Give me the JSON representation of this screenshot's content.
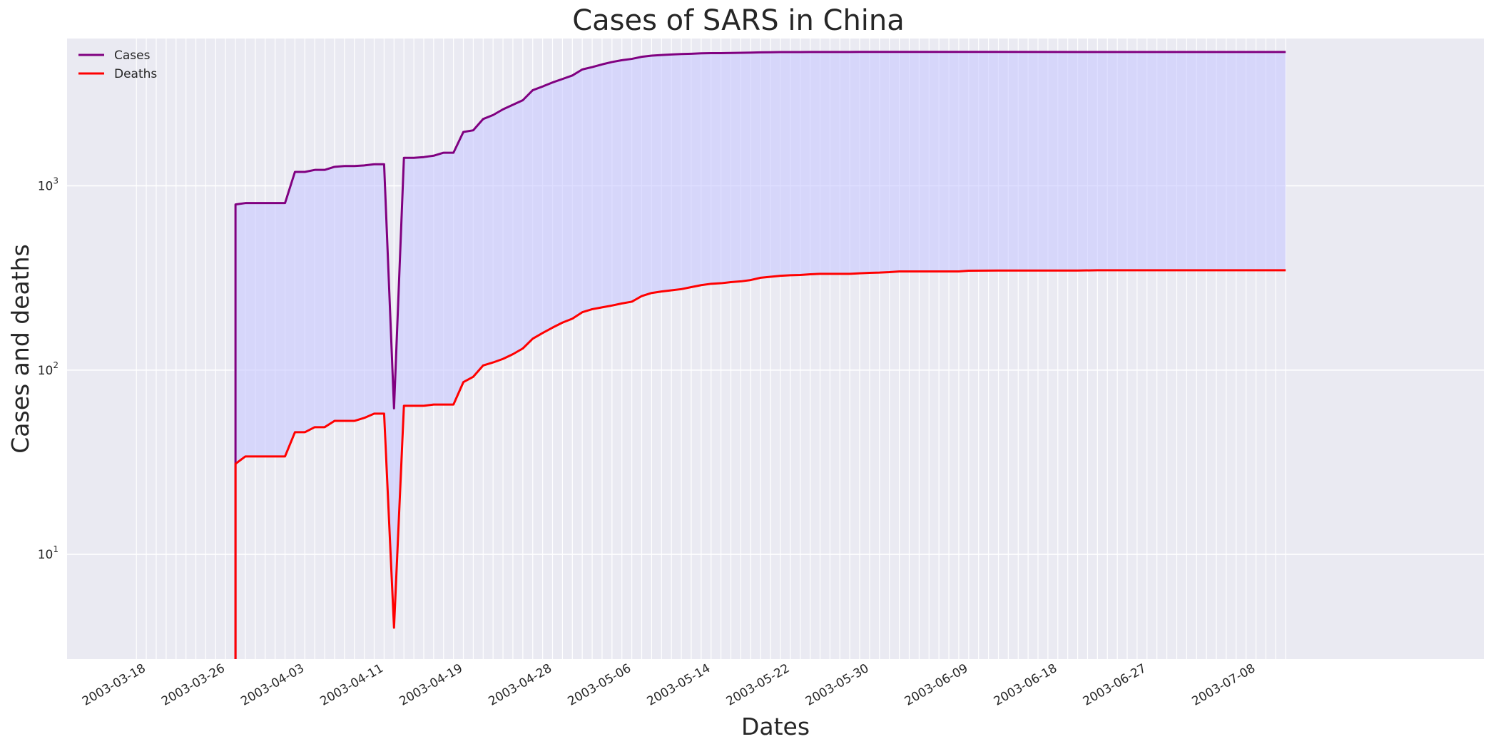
{
  "chart_data": {
    "type": "line",
    "title": "Cases of SARS in China",
    "xlabel": "Dates",
    "ylabel": "Cases and deaths",
    "y_scale": "log",
    "ylim": [
      2.7,
      6300
    ],
    "y_ticks": [
      {
        "value": 10,
        "label_base": "10",
        "label_exp": "1"
      },
      {
        "value": 100,
        "label_base": "10",
        "label_exp": "2"
      },
      {
        "value": 1000,
        "label_base": "10",
        "label_exp": "3"
      }
    ],
    "x_start": "2003-03-17",
    "xlim": [
      "2003-03-10",
      "2003-07-31"
    ],
    "x_tick_labels": [
      "2003-03-18",
      "2003-03-26",
      "2003-04-03",
      "2003-04-11",
      "2003-04-19",
      "2003-04-28",
      "2003-05-06",
      "2003-05-14",
      "2003-05-22",
      "2003-05-30",
      "2003-06-09",
      "2003-06-18",
      "2003-06-27",
      "2003-07-08"
    ],
    "grid": true,
    "legend_position": "top-left",
    "fill_between": {
      "color": "#c8c8ff",
      "opacity": 0.6
    },
    "series": [
      {
        "name": "Cases",
        "color": "#800080",
        "points": [
          [
            "2003-03-27",
            2.7
          ],
          [
            "2003-03-27",
            792
          ],
          [
            "2003-03-28",
            806
          ],
          [
            "2003-04-01",
            806
          ],
          [
            "2003-04-02",
            1190
          ],
          [
            "2003-04-03",
            1190
          ],
          [
            "2003-04-04",
            1220
          ],
          [
            "2003-04-05",
            1220
          ],
          [
            "2003-04-06",
            1268
          ],
          [
            "2003-04-07",
            1280
          ],
          [
            "2003-04-08",
            1280
          ],
          [
            "2003-04-09",
            1290
          ],
          [
            "2003-04-10",
            1309
          ],
          [
            "2003-04-11",
            1309
          ],
          [
            "2003-04-12",
            62
          ],
          [
            "2003-04-13",
            1418
          ],
          [
            "2003-04-14",
            1418
          ],
          [
            "2003-04-15",
            1432
          ],
          [
            "2003-04-16",
            1457
          ],
          [
            "2003-04-17",
            1512
          ],
          [
            "2003-04-18",
            1512
          ],
          [
            "2003-04-19",
            1959
          ],
          [
            "2003-04-20",
            2001
          ],
          [
            "2003-04-21",
            2305
          ],
          [
            "2003-04-22",
            2422
          ],
          [
            "2003-04-23",
            2601
          ],
          [
            "2003-04-24",
            2753
          ],
          [
            "2003-04-25",
            2914
          ],
          [
            "2003-04-26",
            3303
          ],
          [
            "2003-04-27",
            3460
          ],
          [
            "2003-04-28",
            3638
          ],
          [
            "2003-04-29",
            3799
          ],
          [
            "2003-04-30",
            3971
          ],
          [
            "2003-05-01",
            4280
          ],
          [
            "2003-05-02",
            4409
          ],
          [
            "2003-05-03",
            4560
          ],
          [
            "2003-05-04",
            4698
          ],
          [
            "2003-05-05",
            4805
          ],
          [
            "2003-05-06",
            4884
          ],
          [
            "2003-05-07",
            5013
          ],
          [
            "2003-05-08",
            5086
          ],
          [
            "2003-05-09",
            5124
          ],
          [
            "2003-05-10",
            5163
          ],
          [
            "2003-05-11",
            5191
          ],
          [
            "2003-05-12",
            5209
          ],
          [
            "2003-05-13",
            5236
          ],
          [
            "2003-05-14",
            5248
          ],
          [
            "2003-05-15",
            5249
          ],
          [
            "2003-05-16",
            5260
          ],
          [
            "2003-05-17",
            5271
          ],
          [
            "2003-05-18",
            5285
          ],
          [
            "2003-05-19",
            5301
          ],
          [
            "2003-05-20",
            5309
          ],
          [
            "2003-05-21",
            5316
          ],
          [
            "2003-05-22",
            5316
          ],
          [
            "2003-05-23",
            5321
          ],
          [
            "2003-05-24",
            5322
          ],
          [
            "2003-05-25",
            5323
          ],
          [
            "2003-05-26",
            5325
          ],
          [
            "2003-05-27",
            5327
          ],
          [
            "2003-05-28",
            5327
          ],
          [
            "2003-05-29",
            5328
          ],
          [
            "2003-05-30",
            5328
          ],
          [
            "2003-05-31",
            5328
          ],
          [
            "2003-06-05",
            5328
          ],
          [
            "2003-06-10",
            5328
          ],
          [
            "2003-06-20",
            5327
          ],
          [
            "2003-07-11",
            5327
          ]
        ]
      },
      {
        "name": "Deaths",
        "color": "#ff0000",
        "points": [
          [
            "2003-03-27",
            2.7
          ],
          [
            "2003-03-27",
            31
          ],
          [
            "2003-03-28",
            34
          ],
          [
            "2003-04-01",
            34
          ],
          [
            "2003-04-02",
            46
          ],
          [
            "2003-04-03",
            46
          ],
          [
            "2003-04-04",
            49
          ],
          [
            "2003-04-05",
            49
          ],
          [
            "2003-04-06",
            53
          ],
          [
            "2003-04-07",
            53
          ],
          [
            "2003-04-08",
            53
          ],
          [
            "2003-04-09",
            55
          ],
          [
            "2003-04-10",
            58
          ],
          [
            "2003-04-11",
            58
          ],
          [
            "2003-04-12",
            4
          ],
          [
            "2003-04-13",
            64
          ],
          [
            "2003-04-14",
            64
          ],
          [
            "2003-04-15",
            64
          ],
          [
            "2003-04-16",
            65
          ],
          [
            "2003-04-17",
            65
          ],
          [
            "2003-04-18",
            65
          ],
          [
            "2003-04-19",
            86
          ],
          [
            "2003-04-20",
            92
          ],
          [
            "2003-04-21",
            106
          ],
          [
            "2003-04-22",
            110
          ],
          [
            "2003-04-23",
            115
          ],
          [
            "2003-04-24",
            122
          ],
          [
            "2003-04-25",
            131
          ],
          [
            "2003-04-26",
            148
          ],
          [
            "2003-04-27",
            159
          ],
          [
            "2003-04-28",
            170
          ],
          [
            "2003-04-29",
            181
          ],
          [
            "2003-04-30",
            190
          ],
          [
            "2003-05-01",
            206
          ],
          [
            "2003-05-02",
            214
          ],
          [
            "2003-05-03",
            219
          ],
          [
            "2003-05-04",
            224
          ],
          [
            "2003-05-05",
            230
          ],
          [
            "2003-05-06",
            235
          ],
          [
            "2003-05-07",
            252
          ],
          [
            "2003-05-08",
            262
          ],
          [
            "2003-05-09",
            267
          ],
          [
            "2003-05-10",
            271
          ],
          [
            "2003-05-11",
            275
          ],
          [
            "2003-05-12",
            282
          ],
          [
            "2003-05-13",
            289
          ],
          [
            "2003-05-14",
            294
          ],
          [
            "2003-05-15",
            296
          ],
          [
            "2003-05-16",
            300
          ],
          [
            "2003-05-17",
            303
          ],
          [
            "2003-05-18",
            308
          ],
          [
            "2003-05-19",
            317
          ],
          [
            "2003-05-20",
            321
          ],
          [
            "2003-05-21",
            325
          ],
          [
            "2003-05-22",
            327
          ],
          [
            "2003-05-23",
            328
          ],
          [
            "2003-05-24",
            331
          ],
          [
            "2003-05-25",
            333
          ],
          [
            "2003-05-26",
            333
          ],
          [
            "2003-05-27",
            333
          ],
          [
            "2003-05-28",
            333
          ],
          [
            "2003-05-29",
            335
          ],
          [
            "2003-05-30",
            337
          ],
          [
            "2003-05-31",
            338
          ],
          [
            "2003-06-01",
            340
          ],
          [
            "2003-06-02",
            343
          ],
          [
            "2003-06-05",
            343
          ],
          [
            "2003-06-08",
            343
          ],
          [
            "2003-06-09",
            346
          ],
          [
            "2003-06-12",
            347
          ],
          [
            "2003-06-20",
            347
          ],
          [
            "2003-06-22",
            348
          ],
          [
            "2003-07-11",
            348
          ]
        ]
      }
    ]
  }
}
